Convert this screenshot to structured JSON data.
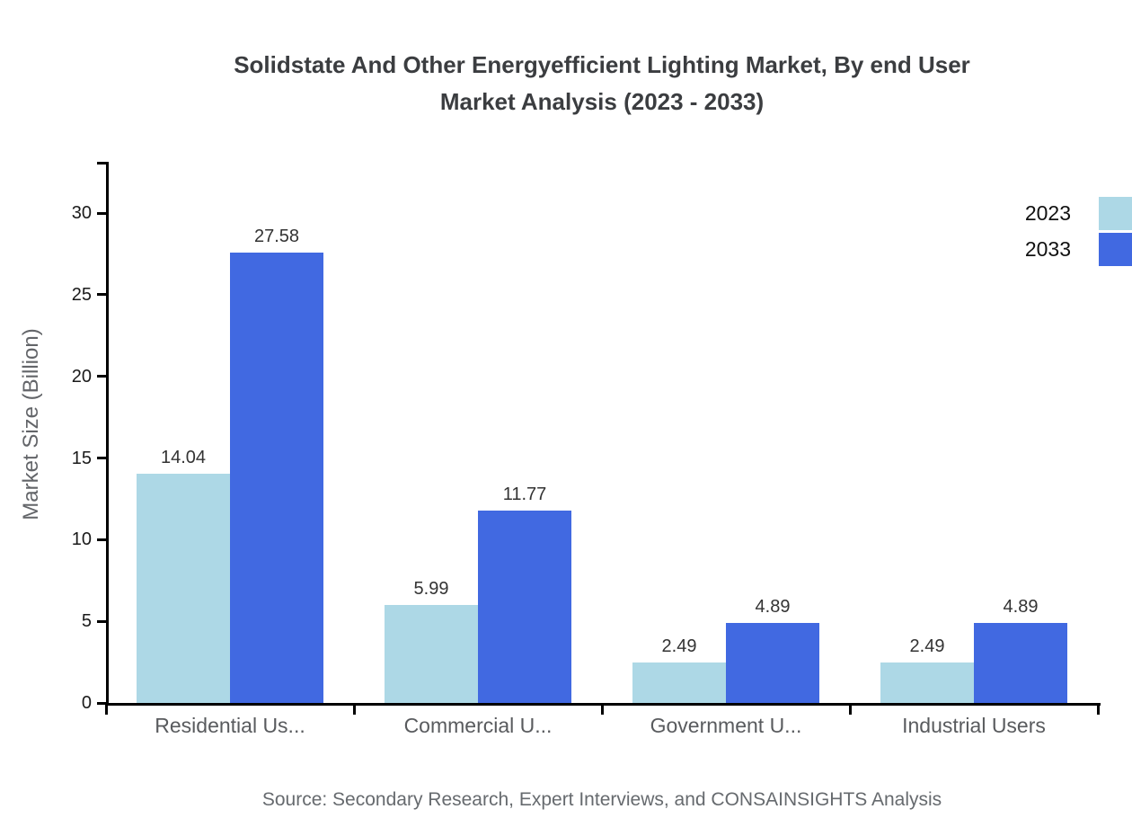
{
  "title": {
    "line1": "Solidstate And Other Energyefficient Lighting Market, By end User",
    "line2": "Market Analysis (2023 - 2033)"
  },
  "legend": {
    "position": "top-right",
    "items": [
      {
        "label": "2023",
        "color": "#ADD8E6"
      },
      {
        "label": "2033",
        "color": "#4169E1"
      }
    ]
  },
  "source_note": "Source: Secondary Research, Expert Interviews, and CONSAINSIGHTS Analysis",
  "chart_data": {
    "type": "bar",
    "title": "Solidstate And Other Energyefficient Lighting Market, By end User Market Analysis (2023 - 2033)",
    "categories": [
      "Residential Us...",
      "Commercial U...",
      "Government U...",
      "Industrial Users"
    ],
    "series": [
      {
        "name": "2023",
        "color": "#ADD8E6",
        "values": [
          14.04,
          5.99,
          2.49,
          2.49
        ]
      },
      {
        "name": "2033",
        "color": "#4169E1",
        "values": [
          27.58,
          11.77,
          4.89,
          4.89
        ]
      }
    ],
    "xlabel": "",
    "ylabel": "Market Size (Billion)",
    "ylim": [
      0,
      33.14
    ],
    "yticks": [
      0,
      5,
      10,
      15,
      20,
      25,
      30
    ],
    "grid": false,
    "value_labels": true,
    "legend_position": "top-right"
  },
  "colors": {
    "background": "#ffffff",
    "axis": "#000000",
    "title_text": "#3b3d40",
    "tick_label": "#1a1a1a",
    "category_label": "#595b5e",
    "value_label": "#333333",
    "muted_text": "#666a6e"
  }
}
